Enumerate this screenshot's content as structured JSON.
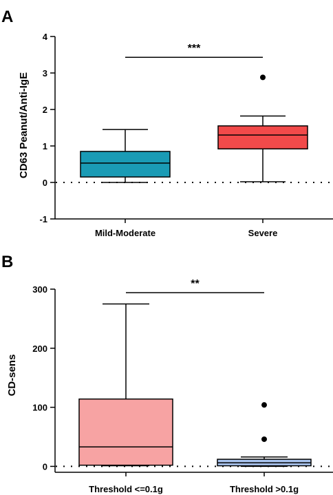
{
  "chart_data": [
    {
      "panel": "A",
      "type": "box",
      "ylabel": "CD63 Peanut/Anti-IgE",
      "ylim": [
        -1,
        4
      ],
      "yticks": [
        -1,
        0,
        1,
        2,
        3,
        4
      ],
      "ytick_labels": [
        "-1",
        "0",
        "1",
        "2",
        "3",
        "4"
      ],
      "reference_line": 0,
      "grid": false,
      "legend": "none",
      "categories": [
        "Mild-Moderate",
        "Severe"
      ],
      "boxes": [
        {
          "category": "Mild-Moderate",
          "min": 0.0,
          "q1": 0.15,
          "median": 0.53,
          "q3": 0.85,
          "max": 1.45,
          "outliers": [],
          "color": "#1a9bb5"
        },
        {
          "category": "Severe",
          "min": 0.02,
          "q1": 0.92,
          "median": 1.3,
          "q3": 1.55,
          "max": 1.82,
          "outliers": [
            2.88
          ],
          "color": "#f24a4a"
        }
      ],
      "significance": {
        "text": "***",
        "between": [
          "Mild-Moderate",
          "Severe"
        ],
        "y": 3.43
      }
    },
    {
      "panel": "B",
      "type": "box",
      "ylabel": "CD-sens",
      "ylim": [
        -10,
        300
      ],
      "yticks": [
        0,
        100,
        200,
        300
      ],
      "ytick_labels": [
        "0",
        "100",
        "200",
        "300"
      ],
      "reference_line": 0,
      "grid": false,
      "legend": "none",
      "categories": [
        "Threshold <=0.1g",
        "Threshold >0.1g"
      ],
      "boxes": [
        {
          "category": "Threshold <=0.1g",
          "min": 1,
          "q1": 2,
          "median": 33,
          "q3": 114,
          "max": 275,
          "outliers": [],
          "color": "#f7a3a3"
        },
        {
          "category": "Threshold >0.1g",
          "min": 0,
          "q1": 1,
          "median": 6,
          "q3": 12,
          "max": 16,
          "outliers": [
            46,
            104
          ],
          "color": "#a9c4ee"
        }
      ],
      "significance": {
        "text": "**",
        "between": [
          "Threshold <=0.1g",
          "Threshold >0.1g"
        ],
        "y": 294
      }
    }
  ]
}
